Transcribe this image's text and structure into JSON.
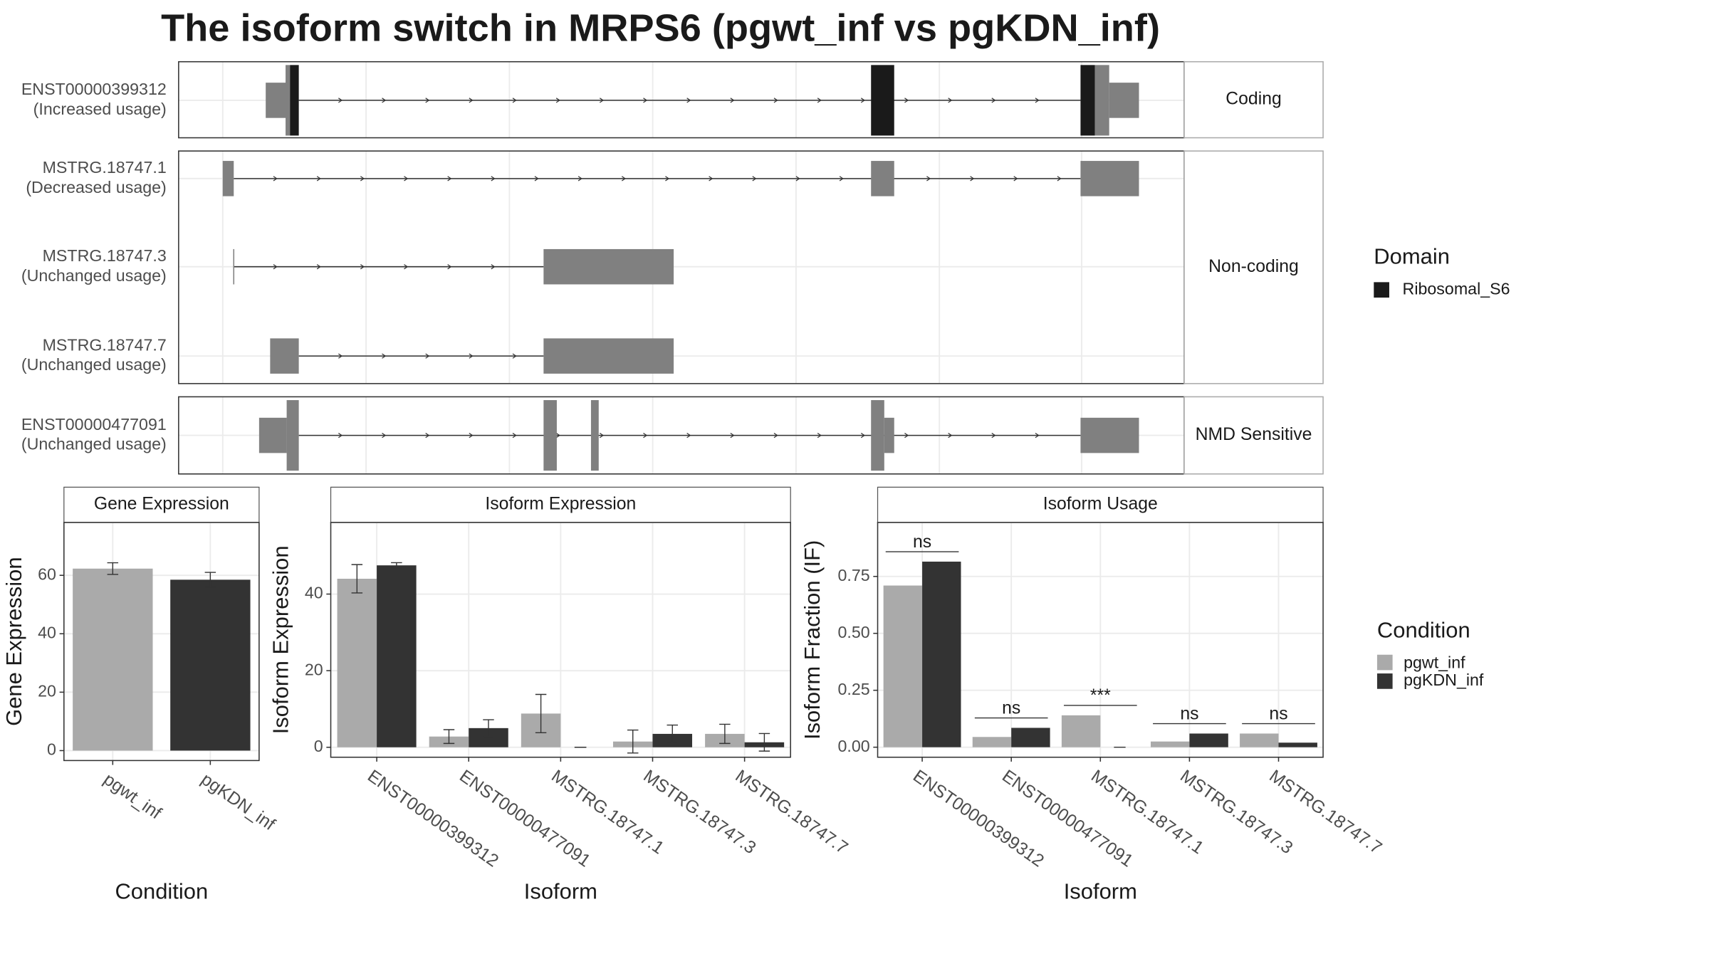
{
  "title": "The isoform switch in MRPS6 (pgwt_inf vs pgKDN_inf)",
  "transcript_groups": [
    {
      "label": "Coding",
      "transcripts": [
        {
          "name": "ENST00000399312",
          "usage": "(Increased usage)"
        }
      ]
    },
    {
      "label": "Non-coding",
      "transcripts": [
        {
          "name": "MSTRG.18747.1",
          "usage": "(Decreased usage)"
        },
        {
          "name": "MSTRG.18747.3",
          "usage": "(Unchanged usage)"
        },
        {
          "name": "MSTRG.18747.7",
          "usage": "(Unchanged usage)"
        }
      ]
    },
    {
      "label": "NMD Sensitive",
      "transcripts": [
        {
          "name": "ENST00000477091",
          "usage": "(Unchanged usage)"
        }
      ]
    }
  ],
  "domain_legend": {
    "title": "Domain",
    "items": [
      {
        "name": "Ribosomal_S6",
        "color": "#1a1a1a"
      }
    ]
  },
  "condition_legend_title": "Condition",
  "chart_data": [
    {
      "type": "bar",
      "title": "Gene Expression",
      "ylabel": "Gene Expression",
      "xlabel": "Condition",
      "categories": [
        "pgwt_inf",
        "pgKDN_inf"
      ],
      "values": [
        62.3,
        58.5
      ],
      "errors": [
        2,
        2.5
      ],
      "colors": [
        "#aaaaaa",
        "#333333"
      ],
      "ylim": [
        -3.4,
        78.1
      ],
      "yticks": [
        0,
        20,
        40,
        60
      ],
      "grid": true
    },
    {
      "type": "grouped_bar",
      "title": "Isoform Expression",
      "ylabel": "Isoform Expression",
      "xlabel": "Isoform",
      "categories": [
        "ENST00000399312",
        "ENST00000477091",
        "MSTRG.18747.1",
        "MSTRG.18747.3",
        "MSTRG.18747.7"
      ],
      "series": [
        {
          "name": "pgwt_inf",
          "color": "#aaaaaa",
          "values": [
            44,
            2.8,
            8.8,
            1.5,
            3.5
          ],
          "errors": [
            3.7,
            1.8,
            5,
            3,
            2.5
          ]
        },
        {
          "name": "pgKDN_inf",
          "color": "#333333",
          "values": [
            47.5,
            5,
            0,
            3.5,
            1.3
          ],
          "errors": [
            0.7,
            2.2,
            0,
            2.3,
            2.3
          ]
        }
      ],
      "ylim": [
        -2.6,
        58.7
      ],
      "yticks": [
        0,
        20,
        40
      ],
      "grid": true
    },
    {
      "type": "grouped_bar",
      "title": "Isoform Usage",
      "ylabel": "Isoform Fraction (IF)",
      "xlabel": "Isoform",
      "categories": [
        "ENST00000399312",
        "ENST00000477091",
        "MSTRG.18747.1",
        "MSTRG.18747.3",
        "MSTRG.18747.7"
      ],
      "series": [
        {
          "name": "pgwt_inf",
          "color": "#aaaaaa",
          "values": [
            0.71,
            0.045,
            0.14,
            0.025,
            0.06
          ]
        },
        {
          "name": "pgKDN_inf",
          "color": "#333333",
          "values": [
            0.815,
            0.085,
            0,
            0.06,
            0.02
          ]
        }
      ],
      "annotations": [
        "ns",
        "ns",
        "***",
        "ns",
        "ns"
      ],
      "ylim": [
        -0.044,
        0.987
      ],
      "yticks": [
        {
          "value": 0,
          "label": "0.00"
        },
        {
          "value": 0.25,
          "label": "0.25"
        },
        {
          "value": 0.5,
          "label": "0.50"
        },
        {
          "value": 0.75,
          "label": "0.75"
        }
      ],
      "grid": true
    }
  ]
}
